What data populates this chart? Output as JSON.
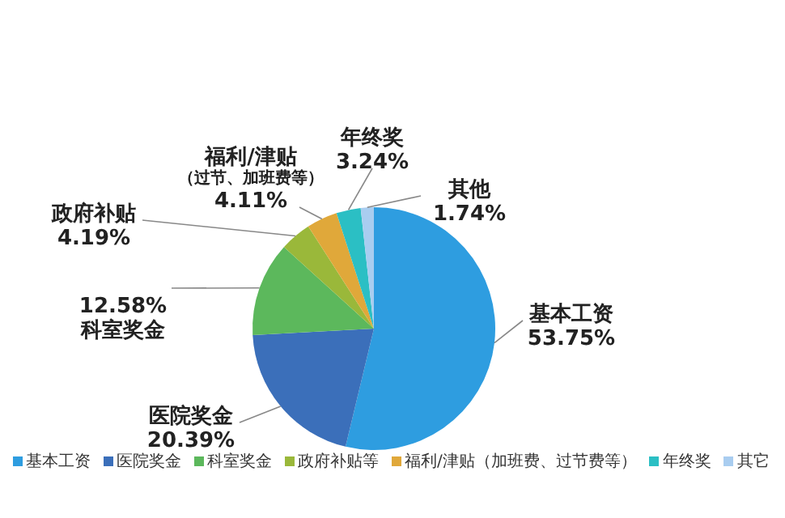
{
  "chart_data": {
    "type": "pie",
    "categories": [
      "基本工资",
      "医院奖金",
      "科室奖金",
      "政府补贴等",
      "福利/津贴（加班费、过节费等）",
      "年终奖",
      "其它"
    ],
    "values": [
      53.75,
      20.39,
      12.58,
      4.19,
      4.11,
      3.24,
      1.74
    ],
    "value_labels": [
      "53.75%",
      "20.39%",
      "12.58%",
      "4.19%",
      "4.11%",
      "3.24%",
      "1.74%"
    ],
    "colors": [
      "#2e9de0",
      "#3b6fba",
      "#5cb85c",
      "#9ab83a",
      "#e0a83a",
      "#2bbfc4",
      "#a9cdf0"
    ],
    "annotations": [
      "基本工资",
      "医院奖金",
      "科室奖金",
      "政府补贴",
      "福利/津贴",
      "年终奖",
      "其他",
      {
        "text": "（过节、加班费等）",
        "x": "福利/津贴（加班费、过节费等）"
      }
    ],
    "legend": "bottom"
  }
}
